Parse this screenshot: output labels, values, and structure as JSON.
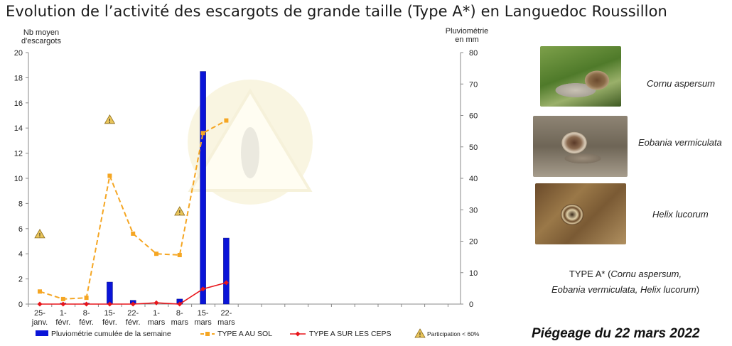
{
  "title": "Evolution de l’activité des escargots de grande taille (Type A*) en Languedoc Roussillon",
  "chart_data": {
    "type": "bar+line",
    "y_left_label": [
      "Nb moyen",
      "d'escargots"
    ],
    "y_right_label": [
      "Pluviométrie",
      "en mm"
    ],
    "y_left_range": [
      0,
      20
    ],
    "y_left_ticks": [
      "0",
      "2",
      "4",
      "6",
      "8",
      "10",
      "12",
      "14",
      "16",
      "18",
      "20"
    ],
    "y_right_range": [
      0,
      80
    ],
    "y_right_ticks": [
      "0",
      "10",
      "20",
      "30",
      "40",
      "50",
      "60",
      "70",
      "80"
    ],
    "grid": false,
    "legend_position": "bottom",
    "categories": [
      [
        "25-",
        "janv."
      ],
      [
        "1-",
        "févr."
      ],
      [
        "8-",
        "févr."
      ],
      [
        "15-",
        "févr."
      ],
      [
        "22-",
        "févr."
      ],
      [
        "1-",
        "mars"
      ],
      [
        "8-",
        "mars"
      ],
      [
        "15-",
        "mars"
      ],
      [
        "22-",
        "mars"
      ]
    ],
    "series": [
      {
        "name": "Pluviométrie cumulée de la semaine",
        "kind": "bar",
        "axis": "right",
        "color": "#0a14d8",
        "values": [
          0,
          0.3,
          0.3,
          7,
          1.2,
          0,
          1.6,
          74,
          21
        ]
      },
      {
        "name": "TYPE A AU SOL",
        "kind": "line-dashed",
        "axis": "left",
        "color": "#f5a623",
        "values": [
          1.0,
          0.4,
          0.5,
          10.2,
          5.6,
          4.0,
          3.9,
          13.6,
          14.6
        ]
      },
      {
        "name": "TYPE A SUR LES CEPS",
        "kind": "line",
        "axis": "left",
        "color": "#e8141a",
        "values": [
          0,
          0,
          0,
          0,
          0,
          0.1,
          0,
          1.2,
          1.7
        ]
      },
      {
        "name": "Participation < 60%",
        "kind": "marker-warning",
        "axis": "left",
        "color": "#e8c45a",
        "points": [
          {
            "x": 0,
            "y": 5.6
          },
          {
            "x": 3,
            "y": 14.7
          },
          {
            "x": 6,
            "y": 7.4
          }
        ]
      }
    ]
  },
  "species": [
    {
      "name": "Cornu aspersum",
      "icon": "snail-photo-cornu"
    },
    {
      "name": "Eobania vermiculata",
      "icon": "snail-photo-eobania"
    },
    {
      "name": "Helix lucorum",
      "icon": "snail-photo-helix"
    }
  ],
  "type_note": {
    "prefix": "TYPE A* (",
    "line1_italic": "Cornu aspersum,",
    "line2_italic": "Eobania vermiculata, Helix lucorum",
    "suffix": ")"
  },
  "trap_date": "Piégeage du 22 mars 2022"
}
